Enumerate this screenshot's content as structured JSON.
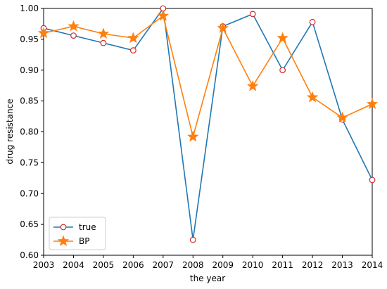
{
  "chart_data": {
    "type": "line",
    "title": "",
    "xlabel": "the year",
    "ylabel": "drug resistance",
    "x": [
      2003,
      2004,
      2005,
      2006,
      2007,
      2008,
      2009,
      2010,
      2011,
      2012,
      2013,
      2014
    ],
    "xlim": [
      2003,
      2014
    ],
    "ylim": [
      0.6,
      1.0
    ],
    "yticks": [
      0.6,
      0.65,
      0.7,
      0.75,
      0.8,
      0.85,
      0.9,
      0.95,
      1.0
    ],
    "grid": false,
    "legend_position": "lower-left",
    "series": [
      {
        "name": "true",
        "color": "#1f77b4",
        "marker": "circle-open",
        "marker_edge_color": "#d62728",
        "values": [
          0.968,
          0.956,
          0.944,
          0.932,
          1.0,
          0.625,
          0.971,
          0.991,
          0.9,
          0.978,
          0.82,
          0.722
        ]
      },
      {
        "name": "BP",
        "color": "#ff7f0e",
        "marker": "star",
        "values": [
          0.96,
          0.971,
          0.959,
          0.952,
          0.988,
          0.792,
          0.968,
          0.874,
          0.952,
          0.856,
          0.823,
          0.845
        ]
      }
    ]
  }
}
